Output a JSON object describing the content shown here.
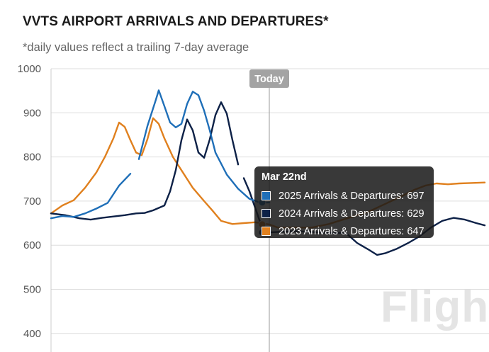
{
  "header": {
    "title": "VVTS AIRPORT ARRIVALS AND DEPARTURES*",
    "subtitle": "*daily values reflect a trailing 7-day average"
  },
  "watermark": "Flight",
  "colors": {
    "s2025": "#1f6fb8",
    "s2024": "#0d2147",
    "s2023": "#e0801e",
    "grid": "#dddddd",
    "today_line": "#aaaaaa",
    "today_label_bg": "#a3a3a3"
  },
  "tooltip": {
    "title": "Mar 22nd",
    "rows": [
      {
        "label": "2025 Arrivals & Departures: 697",
        "color": "#1f6fb8"
      },
      {
        "label": "2024 Arrivals & Departures: 629",
        "color": "#0d2147"
      },
      {
        "label": "2023 Arrivals & Departures: 647",
        "color": "#e0801e"
      }
    ]
  },
  "chart_data": {
    "type": "line",
    "title": "VVTS AIRPORT ARRIVALS AND DEPARTURES*",
    "subtitle": "*daily values reflect a trailing 7-day average",
    "xlabel": "",
    "ylabel": "",
    "ylim": [
      400,
      1000
    ],
    "yticks": [
      1000,
      900,
      800,
      700,
      600,
      500,
      400
    ],
    "grid": true,
    "today_marker": {
      "label": "Today",
      "x": 77
    },
    "x_index_range": [
      0,
      140
    ],
    "series": [
      {
        "name": "2025 Arrivals & Departures",
        "color": "#1f6fb8",
        "points": [
          [
            0,
            661
          ],
          [
            4,
            666
          ],
          [
            8,
            664
          ],
          [
            12,
            672
          ],
          [
            16,
            683
          ],
          [
            20,
            696
          ],
          [
            24,
            735
          ],
          [
            28,
            762
          ],
          [
            31,
            795
          ],
          [
            34,
            870
          ],
          [
            37,
            930
          ],
          [
            38,
            951
          ],
          [
            40,
            915
          ],
          [
            42,
            878
          ],
          [
            44,
            867
          ],
          [
            46,
            875
          ],
          [
            48,
            920
          ],
          [
            50,
            948
          ],
          [
            52,
            940
          ],
          [
            54,
            905
          ],
          [
            56,
            860
          ],
          [
            58,
            810
          ],
          [
            62,
            760
          ],
          [
            66,
            728
          ],
          [
            70,
            705
          ],
          [
            74,
            696
          ],
          [
            77,
            697
          ]
        ],
        "gaps_at": [
          29
        ]
      },
      {
        "name": "2024 Arrivals & Departures",
        "color": "#0d2147",
        "points": [
          [
            0,
            672
          ],
          [
            5,
            668
          ],
          [
            10,
            661
          ],
          [
            14,
            658
          ],
          [
            18,
            662
          ],
          [
            22,
            665
          ],
          [
            26,
            668
          ],
          [
            30,
            672
          ],
          [
            33,
            673
          ],
          [
            36,
            679
          ],
          [
            40,
            690
          ],
          [
            42,
            722
          ],
          [
            44,
            770
          ],
          [
            46,
            838
          ],
          [
            48,
            885
          ],
          [
            50,
            860
          ],
          [
            52,
            810
          ],
          [
            54,
            798
          ],
          [
            56,
            840
          ],
          [
            58,
            895
          ],
          [
            60,
            924
          ],
          [
            62,
            898
          ],
          [
            64,
            838
          ],
          [
            66,
            783
          ],
          [
            68,
            752
          ],
          [
            70,
            722
          ],
          [
            72,
            685
          ],
          [
            74,
            648
          ],
          [
            76,
            631
          ],
          [
            77,
            629
          ],
          [
            80,
            630
          ],
          [
            86,
            632
          ],
          [
            92,
            630
          ],
          [
            98,
            628
          ],
          [
            104,
            628
          ],
          [
            108,
            605
          ],
          [
            112,
            590
          ],
          [
            115,
            578
          ],
          [
            118,
            582
          ],
          [
            122,
            592
          ],
          [
            126,
            605
          ],
          [
            130,
            620
          ],
          [
            134,
            640
          ],
          [
            138,
            655
          ],
          [
            142,
            662
          ],
          [
            146,
            658
          ],
          [
            150,
            650
          ],
          [
            153,
            645
          ]
        ],
        "gaps_at": [
          67
        ]
      },
      {
        "name": "2023 Arrivals & Departures",
        "color": "#e0801e",
        "points": [
          [
            0,
            672
          ],
          [
            4,
            690
          ],
          [
            8,
            702
          ],
          [
            12,
            730
          ],
          [
            16,
            765
          ],
          [
            19,
            800
          ],
          [
            22,
            842
          ],
          [
            24,
            878
          ],
          [
            26,
            868
          ],
          [
            28,
            838
          ],
          [
            30,
            810
          ],
          [
            32,
            804
          ],
          [
            34,
            840
          ],
          [
            36,
            888
          ],
          [
            38,
            875
          ],
          [
            40,
            842
          ],
          [
            43,
            800
          ],
          [
            46,
            770
          ],
          [
            50,
            730
          ],
          [
            54,
            700
          ],
          [
            57,
            678
          ],
          [
            60,
            655
          ],
          [
            64,
            648
          ],
          [
            68,
            650
          ],
          [
            72,
            652
          ],
          [
            77,
            647
          ],
          [
            80,
            640
          ],
          [
            86,
            640
          ],
          [
            92,
            640
          ],
          [
            98,
            648
          ],
          [
            104,
            660
          ],
          [
            108,
            668
          ],
          [
            112,
            676
          ],
          [
            116,
            688
          ],
          [
            120,
            700
          ],
          [
            124,
            712
          ],
          [
            128,
            725
          ],
          [
            132,
            735
          ],
          [
            136,
            740
          ],
          [
            140,
            738
          ],
          [
            144,
            740
          ],
          [
            148,
            741
          ],
          [
            153,
            742
          ]
        ]
      }
    ]
  }
}
